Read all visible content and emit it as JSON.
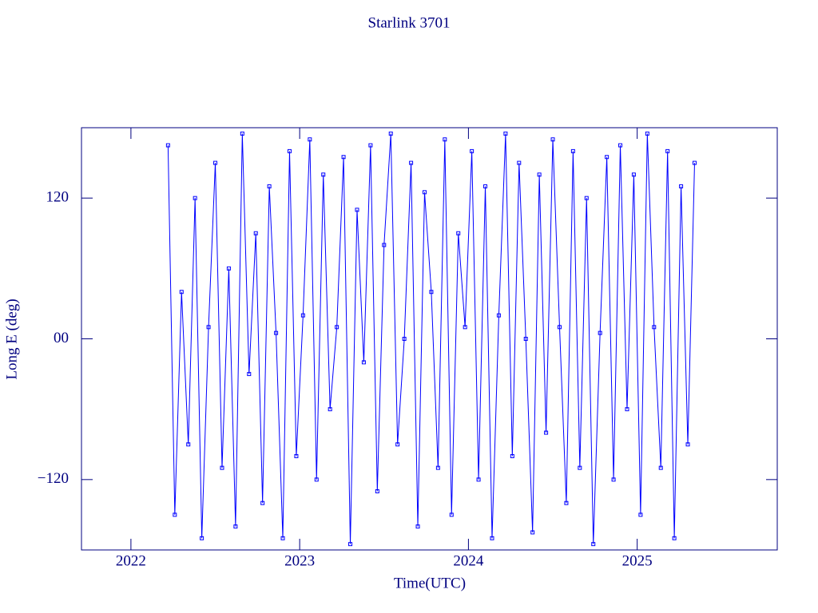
{
  "chart_data": {
    "type": "line",
    "title": "Starlink 3701",
    "xlabel": "Time(UTC)",
    "ylabel": "Long E (deg)",
    "xlim": [
      2021.707,
      2025.83
    ],
    "ylim": [
      -180,
      180
    ],
    "xticks": [
      2022,
      2023,
      2024,
      2025
    ],
    "yticks": [
      {
        "value": -120,
        "label": "−120"
      },
      {
        "value": 0,
        "label": "00"
      },
      120
    ],
    "color": "#0000ff",
    "axis_color": "#000080",
    "series": [
      {
        "name": "Starlink 3701",
        "color": "#0000ff",
        "x": [
          2022.22,
          2022.26,
          2022.3,
          2022.34,
          2022.38,
          2022.42,
          2022.46,
          2022.5,
          2022.54,
          2022.58,
          2022.62,
          2022.66,
          2022.7,
          2022.74,
          2022.78,
          2022.82,
          2022.86,
          2022.9,
          2022.94,
          2022.98,
          2023.02,
          2023.06,
          2023.1,
          2023.14,
          2023.18,
          2023.22,
          2023.26,
          2023.3,
          2023.34,
          2023.38,
          2023.42,
          2023.46,
          2023.5,
          2023.54,
          2023.58,
          2023.62,
          2023.66,
          2023.7,
          2023.74,
          2023.78,
          2023.82,
          2023.86,
          2023.9,
          2023.94,
          2023.98,
          2024.02,
          2024.06,
          2024.1,
          2024.14,
          2024.18,
          2024.22,
          2024.26,
          2024.3,
          2024.34,
          2024.38,
          2024.42,
          2024.46,
          2024.5,
          2024.54,
          2024.58,
          2024.62,
          2024.66,
          2024.7,
          2024.74,
          2024.78,
          2024.82,
          2024.86,
          2024.9,
          2024.94,
          2024.98,
          2025.02,
          2025.06,
          2025.1,
          2025.14,
          2025.18,
          2025.22,
          2025.26,
          2025.3,
          2025.34
        ],
        "values": [
          165,
          -150,
          40,
          -90,
          120,
          -170,
          10,
          150,
          -110,
          60,
          -160,
          175,
          -30,
          90,
          -140,
          130,
          5,
          -170,
          160,
          -100,
          20,
          170,
          -120,
          140,
          -60,
          10,
          155,
          -175,
          110,
          -20,
          165,
          -130,
          80,
          175,
          -90,
          0,
          150,
          -160,
          125,
          40,
          -110,
          170,
          -150,
          90,
          10,
          160,
          -120,
          130,
          -170,
          20,
          175,
          -100,
          150,
          0,
          -165,
          140,
          -80,
          170,
          10,
          -140,
          160,
          -110,
          120,
          -175,
          5,
          155,
          -120,
          165,
          -60,
          140,
          -150,
          175,
          10,
          -110,
          160,
          -170,
          130,
          -90,
          150
        ]
      }
    ]
  }
}
